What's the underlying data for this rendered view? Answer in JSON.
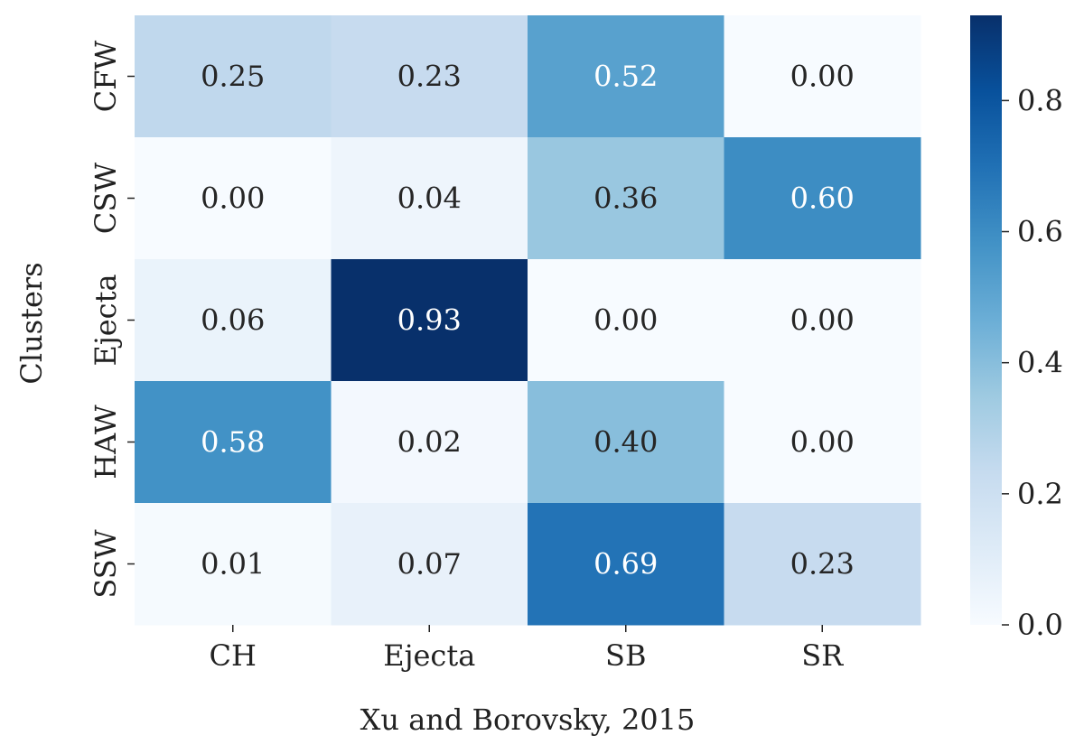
{
  "chart_data": {
    "type": "heatmap",
    "rows": [
      "CFW",
      "CSW",
      "Ejecta",
      "HAW",
      "SSW"
    ],
    "columns": [
      "CH",
      "Ejecta",
      "SB",
      "SR"
    ],
    "values": [
      [
        0.25,
        0.23,
        0.52,
        0.0
      ],
      [
        0.0,
        0.04,
        0.36,
        0.6
      ],
      [
        0.06,
        0.93,
        0.0,
        0.0
      ],
      [
        0.58,
        0.02,
        0.4,
        0.0
      ],
      [
        0.01,
        0.07,
        0.69,
        0.23
      ]
    ],
    "xlabel": "Xu and Borovsky, 2015",
    "ylabel": "Clusters",
    "colorbar": {
      "colormap": "Blues",
      "range": [
        0.0,
        0.93
      ],
      "ticks": [
        "0.0",
        "0.2",
        "0.4",
        "0.6",
        "0.8"
      ]
    },
    "annotation_colors": {
      "light_cell_text": "#262626",
      "dark_cell_text": "#ffffff"
    },
    "colormap_stops": [
      "#f7fbff",
      "#deebf7",
      "#c6dbef",
      "#9ecae1",
      "#6baed6",
      "#4292c6",
      "#2171b5",
      "#08519c",
      "#08306b"
    ]
  }
}
